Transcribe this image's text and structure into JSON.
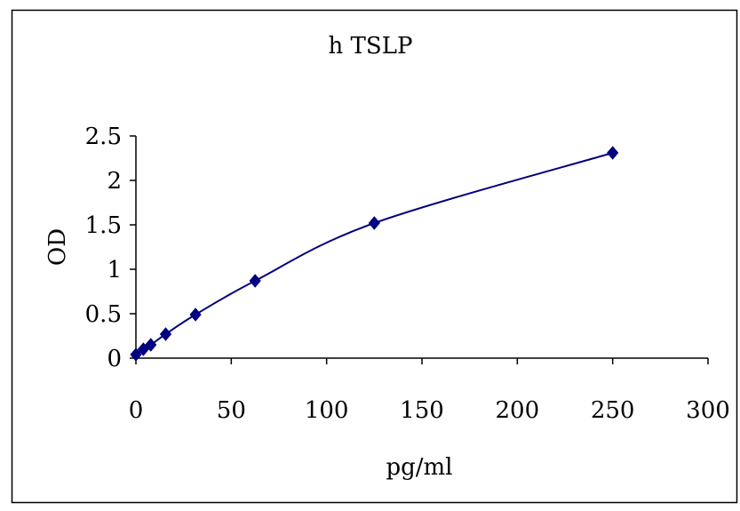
{
  "chart_data": {
    "type": "scatter",
    "title": "h TSLP",
    "xlabel": "pg/ml",
    "ylabel": "OD",
    "xlim": [
      0,
      300
    ],
    "ylim": [
      0,
      2.5
    ],
    "x_ticks": [
      0,
      50,
      100,
      150,
      200,
      250,
      300
    ],
    "y_ticks": [
      0,
      0.5,
      1,
      1.5,
      2,
      2.5
    ],
    "x_tick_labels": [
      "0",
      "50",
      "100",
      "150",
      "200",
      "250",
      "300"
    ],
    "y_tick_labels": [
      "0",
      "0.5",
      "1",
      "1.5",
      "2",
      "2.5"
    ],
    "grid": false,
    "legend": "none",
    "marker": "diamond",
    "line_style": "smoothed",
    "series": [
      {
        "x": [
          0,
          3.9,
          7.8,
          15.6,
          31.25,
          62.5,
          125,
          250
        ],
        "y": [
          0.04,
          0.1,
          0.15,
          0.27,
          0.49,
          0.87,
          1.52,
          2.31
        ],
        "color": "#000080"
      }
    ]
  }
}
